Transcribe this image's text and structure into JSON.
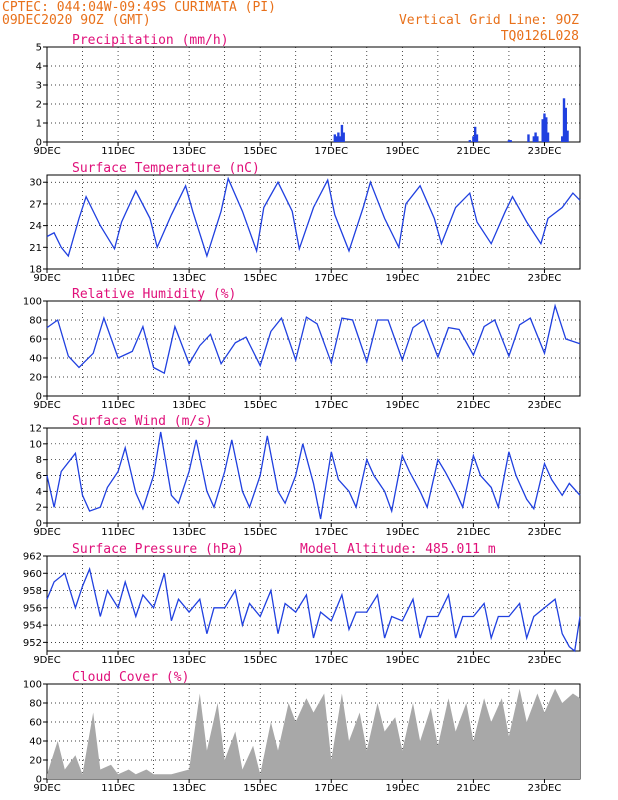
{
  "header": {
    "line1": "CPTEC:   044:04W-09:49S   CURIMATA (PI)",
    "line2": "09DEC2020 9OZ (GMT)",
    "right1": "Vertical Grid Line: 9OZ",
    "right2": "TQ0126L028"
  },
  "colors": {
    "header": "#e8701a",
    "title": "#e0107a",
    "line": "#2040e0",
    "bars": "#2040e0",
    "cloud": "#a8a8a8",
    "grid": "#000000"
  },
  "x_ticks": [
    "9DEC",
    "11DEC",
    "13DEC",
    "15DEC",
    "17DEC",
    "19DEC",
    "21DEC",
    "23DEC"
  ],
  "x_range_days": [
    0,
    15
  ],
  "chart_data": [
    {
      "id": "precip",
      "type": "bar",
      "title": "Precipitation (mm/h)",
      "ylim": [
        0,
        5
      ],
      "yticks": [
        "0",
        "1",
        "2",
        "3",
        "4",
        "5"
      ],
      "x": [
        8.1,
        8.15,
        8.2,
        8.25,
        8.3,
        8.35,
        11.9,
        12.0,
        12.05,
        12.1,
        13.0,
        13.05,
        13.55,
        13.7,
        13.75,
        13.8,
        13.95,
        14.0,
        14.05,
        14.1,
        14.5,
        14.55,
        14.6,
        14.65
      ],
      "values": [
        0.4,
        0.3,
        0.5,
        0.3,
        0.9,
        0.5,
        0.1,
        0.3,
        0.8,
        0.4,
        0.1,
        0.1,
        0.4,
        0.3,
        0.5,
        0.3,
        1.2,
        1.5,
        1.3,
        0.5,
        0.3,
        2.3,
        1.8,
        0.6
      ]
    },
    {
      "id": "temp",
      "type": "line",
      "title": "Surface Temperature (nC)",
      "ylim": [
        18,
        31
      ],
      "yticks": [
        "18",
        "21",
        "24",
        "27",
        "30"
      ],
      "x": [
        0.0,
        0.2,
        0.4,
        0.6,
        0.9,
        1.1,
        1.5,
        1.9,
        2.1,
        2.5,
        2.9,
        3.1,
        3.5,
        3.9,
        4.1,
        4.5,
        4.9,
        5.1,
        5.5,
        5.9,
        6.1,
        6.5,
        6.9,
        7.1,
        7.5,
        7.9,
        8.1,
        8.5,
        8.9,
        9.1,
        9.5,
        9.9,
        10.1,
        10.5,
        10.9,
        11.1,
        11.5,
        11.9,
        12.1,
        12.5,
        12.9,
        13.1,
        13.5,
        13.9,
        14.1,
        14.5,
        14.8,
        15.0
      ],
      "values": [
        22.5,
        23.0,
        21.0,
        19.8,
        25.0,
        28.0,
        24.0,
        20.8,
        24.5,
        28.8,
        25.0,
        21.0,
        25.5,
        29.5,
        26.0,
        19.8,
        26.0,
        30.5,
        26.0,
        20.5,
        26.5,
        30.0,
        26.0,
        20.8,
        26.5,
        30.3,
        25.5,
        20.5,
        26.5,
        30.0,
        25.0,
        21.0,
        27.0,
        29.5,
        25.0,
        21.5,
        26.5,
        28.5,
        24.5,
        21.5,
        26.0,
        28.0,
        24.5,
        21.5,
        25.0,
        26.5,
        28.5,
        27.5
      ]
    },
    {
      "id": "rh",
      "type": "line",
      "title": "Relative Humidity (%)",
      "ylim": [
        0,
        100
      ],
      "yticks": [
        "0",
        "20",
        "40",
        "60",
        "80",
        "100"
      ],
      "x": [
        0.0,
        0.3,
        0.6,
        0.9,
        1.3,
        1.6,
        2.0,
        2.4,
        2.7,
        3.0,
        3.3,
        3.6,
        4.0,
        4.3,
        4.6,
        4.9,
        5.3,
        5.6,
        6.0,
        6.3,
        6.6,
        7.0,
        7.3,
        7.6,
        8.0,
        8.3,
        8.6,
        9.0,
        9.3,
        9.6,
        10.0,
        10.3,
        10.6,
        11.0,
        11.3,
        11.6,
        12.0,
        12.3,
        12.6,
        13.0,
        13.3,
        13.6,
        14.0,
        14.3,
        14.6,
        15.0
      ],
      "values": [
        72,
        80,
        42,
        30,
        45,
        82,
        40,
        47,
        73,
        30,
        24,
        73,
        34,
        53,
        65,
        34,
        56,
        62,
        32,
        68,
        82,
        38,
        83,
        76,
        35,
        82,
        80,
        36,
        80,
        80,
        38,
        72,
        80,
        41,
        72,
        70,
        43,
        73,
        80,
        42,
        75,
        82,
        45,
        95,
        60,
        55
      ]
    },
    {
      "id": "wind",
      "type": "line",
      "title": "Surface Wind (m/s)",
      "ylim": [
        0,
        12
      ],
      "yticks": [
        "0",
        "2",
        "4",
        "6",
        "8",
        "10",
        "12"
      ],
      "x": [
        0.0,
        0.2,
        0.4,
        0.8,
        1.0,
        1.2,
        1.5,
        1.7,
        2.0,
        2.2,
        2.5,
        2.7,
        3.0,
        3.2,
        3.5,
        3.7,
        4.0,
        4.2,
        4.5,
        4.7,
        5.0,
        5.2,
        5.5,
        5.7,
        6.0,
        6.2,
        6.5,
        6.7,
        7.0,
        7.2,
        7.5,
        7.7,
        8.0,
        8.2,
        8.5,
        8.7,
        9.0,
        9.2,
        9.5,
        9.7,
        10.0,
        10.2,
        10.5,
        10.7,
        11.0,
        11.2,
        11.5,
        11.7,
        12.0,
        12.2,
        12.5,
        12.7,
        13.0,
        13.2,
        13.5,
        13.7,
        14.0,
        14.2,
        14.5,
        14.7,
        15.0
      ],
      "values": [
        6.0,
        2.0,
        6.5,
        8.8,
        3.5,
        1.5,
        2.0,
        4.5,
        6.5,
        9.5,
        3.8,
        1.8,
        6.0,
        11.5,
        3.5,
        2.5,
        6.5,
        10.5,
        4.0,
        2.0,
        6.5,
        10.5,
        4.0,
        2.0,
        6.0,
        11.0,
        4.0,
        2.5,
        6.0,
        10.0,
        5.0,
        0.5,
        9.0,
        5.5,
        4.0,
        2.0,
        8.0,
        6.0,
        4.0,
        1.5,
        8.5,
        6.5,
        4.0,
        2.0,
        8.0,
        6.5,
        4.0,
        2.0,
        8.5,
        6.0,
        4.5,
        2.0,
        9.0,
        6.0,
        3.0,
        1.8,
        7.5,
        5.5,
        3.5,
        5.0,
        3.5
      ]
    },
    {
      "id": "press",
      "type": "line",
      "title": "Surface Pressure (hPa)",
      "annotation": "Model Altitude: 485.011 m",
      "ylim": [
        951,
        962
      ],
      "yticks": [
        "952",
        "954",
        "956",
        "958",
        "960",
        "962"
      ],
      "x": [
        0.0,
        0.2,
        0.5,
        0.8,
        1.0,
        1.2,
        1.5,
        1.7,
        2.0,
        2.2,
        2.5,
        2.7,
        3.0,
        3.3,
        3.5,
        3.7,
        4.0,
        4.3,
        4.5,
        4.7,
        5.0,
        5.3,
        5.5,
        5.7,
        6.0,
        6.3,
        6.5,
        6.7,
        7.0,
        7.3,
        7.5,
        7.7,
        8.0,
        8.3,
        8.5,
        8.7,
        9.0,
        9.3,
        9.5,
        9.7,
        10.0,
        10.3,
        10.5,
        10.7,
        11.0,
        11.3,
        11.5,
        11.7,
        12.0,
        12.3,
        12.5,
        12.7,
        13.0,
        13.3,
        13.5,
        13.7,
        14.0,
        14.3,
        14.5,
        14.7,
        14.85,
        15.0
      ],
      "values": [
        957.0,
        959.0,
        960.0,
        956.0,
        958.5,
        960.5,
        955.0,
        958.0,
        956.0,
        959.0,
        955.0,
        957.5,
        956.0,
        960.0,
        954.5,
        957.0,
        955.5,
        957.0,
        953.0,
        956.0,
        956.0,
        958.0,
        954.0,
        956.5,
        955.0,
        958.0,
        953.0,
        956.5,
        955.5,
        957.5,
        952.5,
        955.5,
        954.5,
        957.5,
        953.5,
        955.5,
        955.5,
        957.5,
        952.5,
        955.0,
        954.5,
        957.0,
        952.5,
        955.0,
        955.0,
        957.5,
        952.5,
        955.0,
        955.0,
        956.5,
        952.5,
        955.0,
        955.0,
        956.5,
        952.5,
        955.0,
        956.0,
        957.0,
        953.0,
        951.5,
        951.0,
        955.0
      ]
    },
    {
      "id": "cloud",
      "type": "area",
      "title": "Cloud Cover (%)",
      "ylim": [
        0,
        100
      ],
      "yticks": [
        "0",
        "20",
        "40",
        "60",
        "80",
        "100"
      ],
      "x": [
        0.0,
        0.3,
        0.5,
        0.8,
        1.0,
        1.3,
        1.5,
        1.8,
        2.0,
        2.3,
        2.5,
        2.8,
        3.0,
        3.5,
        4.0,
        4.3,
        4.5,
        4.8,
        5.0,
        5.3,
        5.5,
        5.8,
        6.0,
        6.3,
        6.5,
        6.8,
        7.0,
        7.3,
        7.5,
        7.8,
        8.0,
        8.3,
        8.5,
        8.8,
        9.0,
        9.3,
        9.5,
        9.8,
        10.0,
        10.3,
        10.5,
        10.8,
        11.0,
        11.3,
        11.5,
        11.8,
        12.0,
        12.3,
        12.5,
        12.8,
        13.0,
        13.3,
        13.5,
        13.8,
        14.0,
        14.3,
        14.5,
        14.8,
        15.0
      ],
      "values": [
        5,
        40,
        10,
        25,
        5,
        70,
        10,
        15,
        5,
        10,
        5,
        10,
        5,
        5,
        10,
        90,
        30,
        80,
        20,
        50,
        10,
        35,
        5,
        60,
        30,
        80,
        60,
        85,
        70,
        90,
        20,
        90,
        40,
        70,
        30,
        80,
        50,
        65,
        30,
        80,
        40,
        75,
        35,
        85,
        50,
        80,
        40,
        85,
        60,
        85,
        45,
        95,
        60,
        90,
        70,
        95,
        80,
        90,
        85
      ]
    }
  ]
}
